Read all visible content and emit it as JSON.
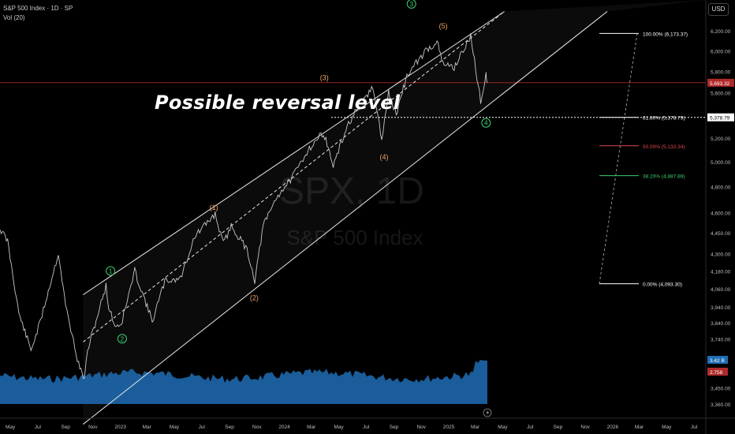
{
  "header": {
    "symbol_line": "S&P 500 Index · 1D · SP",
    "volume_line": "Vol (20)"
  },
  "currency_button": "USD",
  "watermark": {
    "ticker": "SPX, 1D",
    "name": "S&P 500 Index"
  },
  "annotation": "Possible reversal level",
  "colors": {
    "background": "#000000",
    "price": "#c8c8c8",
    "channel": "#e8e8e8",
    "wave_green": "#3bd16f",
    "wave_orange": "#f0a66b",
    "fib_red": "#e04848",
    "fib_green": "#3bd16f",
    "volume": "#1f6db5",
    "last_price_line": "#b02a2a"
  },
  "chart_data": {
    "type": "line",
    "title": "S&P 500 Index · 1D · SP",
    "ylim": [
      3280,
      6400
    ],
    "log_scale": true,
    "x_ticks": [
      "May",
      "Jul",
      "Sep",
      "Nov",
      "2023",
      "Mar",
      "May",
      "Jul",
      "Sep",
      "Nov",
      "2024",
      "Mar",
      "May",
      "Jul",
      "Sep",
      "Nov",
      "2025",
      "Mar",
      "May",
      "Jul",
      "Sep",
      "Nov",
      "2026",
      "Mar",
      "May",
      "Jul"
    ],
    "y_ticks": [
      "6,200.00",
      "6,000.00",
      "5,800.00",
      "5,600.00",
      "5,200.00",
      "5,000.00",
      "4,800.00",
      "4,600.00",
      "4,450.00",
      "4,300.00",
      "4,180.00",
      "4,060.00",
      "3,940.00",
      "3,840.00",
      "3,740.00",
      "3,450.00",
      "3,360.00"
    ],
    "y_tick_values": [
      6200,
      6000,
      5800,
      5600,
      5200,
      5000,
      4800,
      4600,
      4450,
      4300,
      4180,
      4060,
      3940,
      3840,
      3740,
      3450,
      3360
    ],
    "price_series": {
      "x": [
        "2022-04-08",
        "2022-04-25",
        "2022-05-20",
        "2022-06-16",
        "2022-07-05",
        "2022-08-16",
        "2022-09-01",
        "2022-09-30",
        "2022-10-13",
        "2022-10-20",
        "2022-11-30",
        "2022-12-06",
        "2022-12-20",
        "2023-01-03",
        "2023-02-02",
        "2023-03-13",
        "2023-04-10",
        "2023-05-15",
        "2023-06-15",
        "2023-07-31",
        "2023-08-18",
        "2023-09-05",
        "2023-10-10",
        "2023-10-27",
        "2023-11-15",
        "2023-12-15",
        "2024-01-20",
        "2024-02-23",
        "2024-03-28",
        "2024-04-19",
        "2024-05-20",
        "2024-06-18",
        "2024-07-16",
        "2024-08-05",
        "2024-08-20",
        "2024-09-06",
        "2024-09-30",
        "2024-10-18",
        "2024-11-11",
        "2024-12-06",
        "2024-12-19",
        "2025-01-13",
        "2025-02-19",
        "2025-03-13",
        "2025-03-25",
        "2025-03-28"
      ],
      "y": [
        4480,
        4390,
        3900,
        3670,
        3830,
        4305,
        3950,
        3585,
        3500,
        3670,
        4080,
        3940,
        3820,
        3830,
        4180,
        3850,
        4110,
        4130,
        4420,
        4590,
        4370,
        4500,
        4330,
        4115,
        4500,
        4720,
        4880,
        5100,
        5250,
        4967,
        5300,
        5500,
        5650,
        5186,
        5600,
        5408,
        5760,
        5865,
        6000,
        6090,
        5870,
        5840,
        6144,
        5520,
        5780,
        5693
      ]
    },
    "last_price": 5693.32,
    "last_price_label": "5,693.32",
    "volume_labels": [
      "3.42 B",
      "2.758"
    ],
    "channel": {
      "upper": {
        "from": [
          "2022-10-10",
          4020
        ],
        "to": [
          "2025-05-05",
          6400
        ]
      },
      "mid": {
        "from": [
          "2022-10-10",
          3720
        ],
        "to": [
          "2025-05-05",
          6400
        ]
      },
      "lower": {
        "from": [
          "2022-10-10",
          3250
        ],
        "to": [
          "2025-12-20",
          6400
        ]
      }
    },
    "waves": [
      {
        "label": "1",
        "style": "green",
        "x": "2022-12-10",
        "y": 4180
      },
      {
        "label": "2",
        "style": "green",
        "x": "2023-01-05",
        "y": 3740
      },
      {
        "label": "(1)",
        "style": "orange",
        "x": "2023-07-28",
        "y": 4640
      },
      {
        "label": "(2)",
        "style": "orange",
        "x": "2023-10-26",
        "y": 4000
      },
      {
        "label": "(3)",
        "style": "orange",
        "x": "2024-03-30",
        "y": 5740
      },
      {
        "label": "(4)",
        "style": "orange",
        "x": "2024-08-10",
        "y": 5040
      },
      {
        "label": "3",
        "style": "green",
        "x": "2024-10-10",
        "y": 6480
      },
      {
        "label": "(5)",
        "style": "orange",
        "x": "2024-12-20",
        "y": 6250
      },
      {
        "label": "4",
        "style": "green",
        "x": "2025-03-25",
        "y": 5330
      }
    ],
    "fibonacci": [
      {
        "label": "100.00% (6,173.37)",
        "value": 6173.37,
        "color": "#ffffff"
      },
      {
        "label": "61.80% (5,378.79)",
        "value": 5378.79,
        "color": "#ffffff"
      },
      {
        "label": "50.00% (5,133.34)",
        "value": 5133.34,
        "color": "#e04848"
      },
      {
        "label": "38.20% (4,887.89)",
        "value": 4887.89,
        "color": "#3bd16f"
      },
      {
        "label": "0.00% (4,093.30)",
        "value": 4093.3,
        "color": "#ffffff"
      }
    ],
    "reversal_level": 5378.79,
    "reversal_level_label": "5,378.79"
  }
}
